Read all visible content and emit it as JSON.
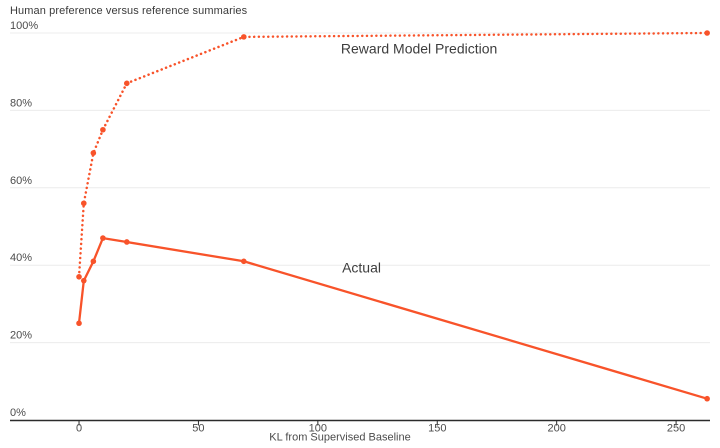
{
  "chart_data": {
    "type": "line",
    "title": "Human preference versus reference summaries",
    "xlabel": "KL from Supervised Baseline",
    "ylabel": "",
    "xlim": [
      -28.9,
      264.2
    ],
    "ylim": [
      0,
      100
    ],
    "x_ticks": [
      0,
      50,
      100,
      150,
      200,
      250
    ],
    "y_ticks": [
      0,
      20,
      40,
      60,
      80,
      100
    ],
    "y_tick_suffix": "%",
    "grid": "horizontal",
    "legend_position": "inline-annotations",
    "line_color": "#f8532a",
    "grid_color": "#ececec",
    "axis_color": "#2b2b2b",
    "tick_label_color": "#4c4c4c",
    "annotation_color": "#3d3d3d",
    "x": [
      0,
      2,
      6,
      10,
      20,
      69,
      263
    ],
    "series": [
      {
        "name": "Reward Model Prediction",
        "style": "dotted",
        "values": [
          37,
          56,
          69,
          75,
          87,
          99,
          100
        ]
      },
      {
        "name": "Actual",
        "style": "solid",
        "values": [
          25,
          36,
          41,
          47,
          46,
          41,
          5.5
        ]
      }
    ],
    "annotations": [
      {
        "text": "Reward Model Prediction",
        "x": 142.4,
        "y": 95.9
      },
      {
        "text": "Actual",
        "x": 118.3,
        "y": 39.3
      }
    ]
  }
}
